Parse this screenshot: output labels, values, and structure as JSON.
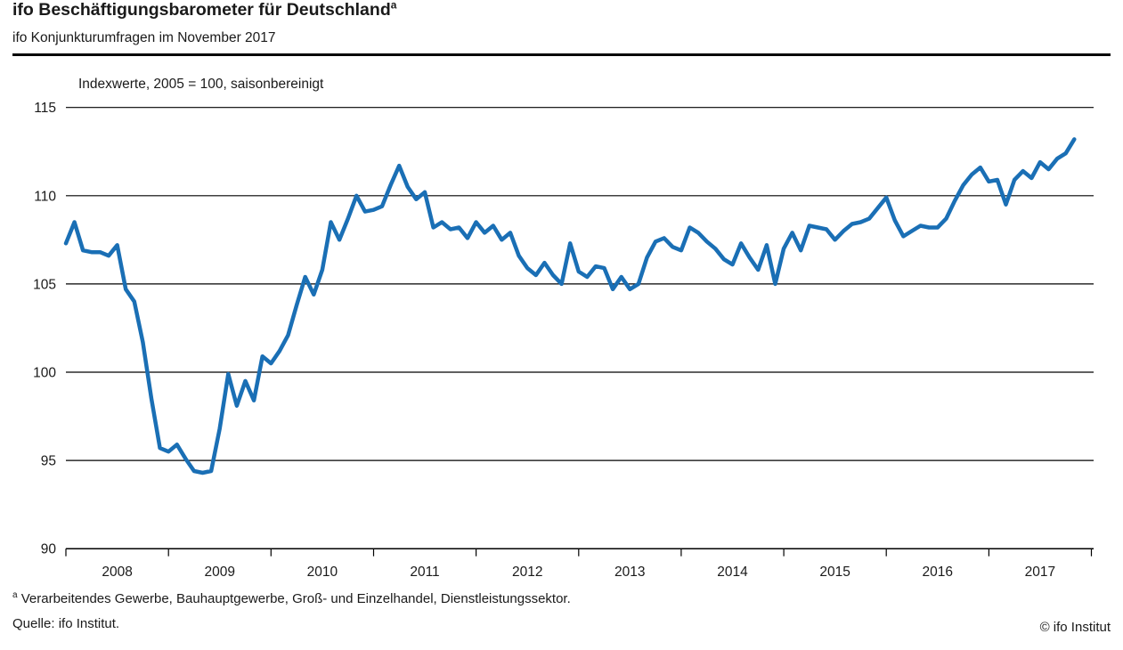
{
  "header": {
    "title": "ifo Beschäftigungsbarometer für Deutschland",
    "title_sup": "a",
    "subtitle": "ifo Konjunkturumfragen im November 2017"
  },
  "chart_data": {
    "type": "line",
    "title": "ifo Beschäftigungsbarometer für Deutschland",
    "subtitle": "ifo Konjunkturumfragen im November 2017",
    "note": "Indexwerte, 2005 = 100, saisonbereinigt",
    "x_unit": "month",
    "x_start": "2008-01",
    "x_end": "2017-11",
    "x_tick_labels": [
      "2008",
      "2009",
      "2010",
      "2011",
      "2012",
      "2013",
      "2014",
      "2015",
      "2016",
      "2017"
    ],
    "ylim": [
      90,
      115
    ],
    "y_ticks": [
      90,
      95,
      100,
      105,
      110,
      115
    ],
    "grid": "horizontal",
    "legend": "none",
    "line_color": "#1a6fb5",
    "grid_color": "#000000",
    "text_color": "#1a1a1a",
    "series": [
      {
        "name": "ifo Beschäftigungsbarometer",
        "values": [
          107.3,
          108.5,
          106.9,
          106.8,
          106.8,
          106.6,
          107.2,
          104.7,
          104.0,
          101.7,
          98.5,
          95.7,
          95.5,
          95.9,
          95.1,
          94.4,
          94.3,
          94.4,
          96.8,
          99.9,
          98.1,
          99.5,
          98.4,
          100.9,
          100.5,
          101.2,
          102.1,
          103.8,
          105.4,
          104.4,
          105.8,
          108.5,
          107.5,
          108.7,
          110.0,
          109.1,
          109.2,
          109.4,
          110.6,
          111.7,
          110.5,
          109.8,
          110.2,
          108.2,
          108.5,
          108.1,
          108.2,
          107.6,
          108.5,
          107.9,
          108.3,
          107.5,
          107.9,
          106.6,
          105.9,
          105.5,
          106.2,
          105.5,
          105.0,
          107.3,
          105.7,
          105.4,
          106.0,
          105.9,
          104.7,
          105.4,
          104.7,
          105.0,
          106.5,
          107.4,
          107.6,
          107.1,
          106.9,
          108.2,
          107.9,
          107.4,
          107.0,
          106.4,
          106.1,
          107.3,
          106.5,
          105.8,
          107.2,
          105.0,
          107.0,
          107.9,
          106.9,
          108.3,
          108.2,
          108.1,
          107.5,
          108.0,
          108.4,
          108.5,
          108.7,
          109.3,
          109.9,
          108.6,
          107.7,
          108.0,
          108.3,
          108.2,
          108.2,
          108.7,
          109.7,
          110.6,
          111.2,
          111.6,
          110.8,
          110.9,
          109.5,
          110.9,
          111.4,
          111.0,
          111.9,
          111.5,
          112.1,
          112.4,
          113.2
        ]
      }
    ]
  },
  "footer": {
    "footnote_sup": "a",
    "footnote": " Verarbeitendes Gewerbe, Bauhauptgewerbe, Groß- und Einzelhandel, Dienstleistungssektor.",
    "source": "Quelle: ifo Institut.",
    "copyright": "© ifo Institut"
  }
}
